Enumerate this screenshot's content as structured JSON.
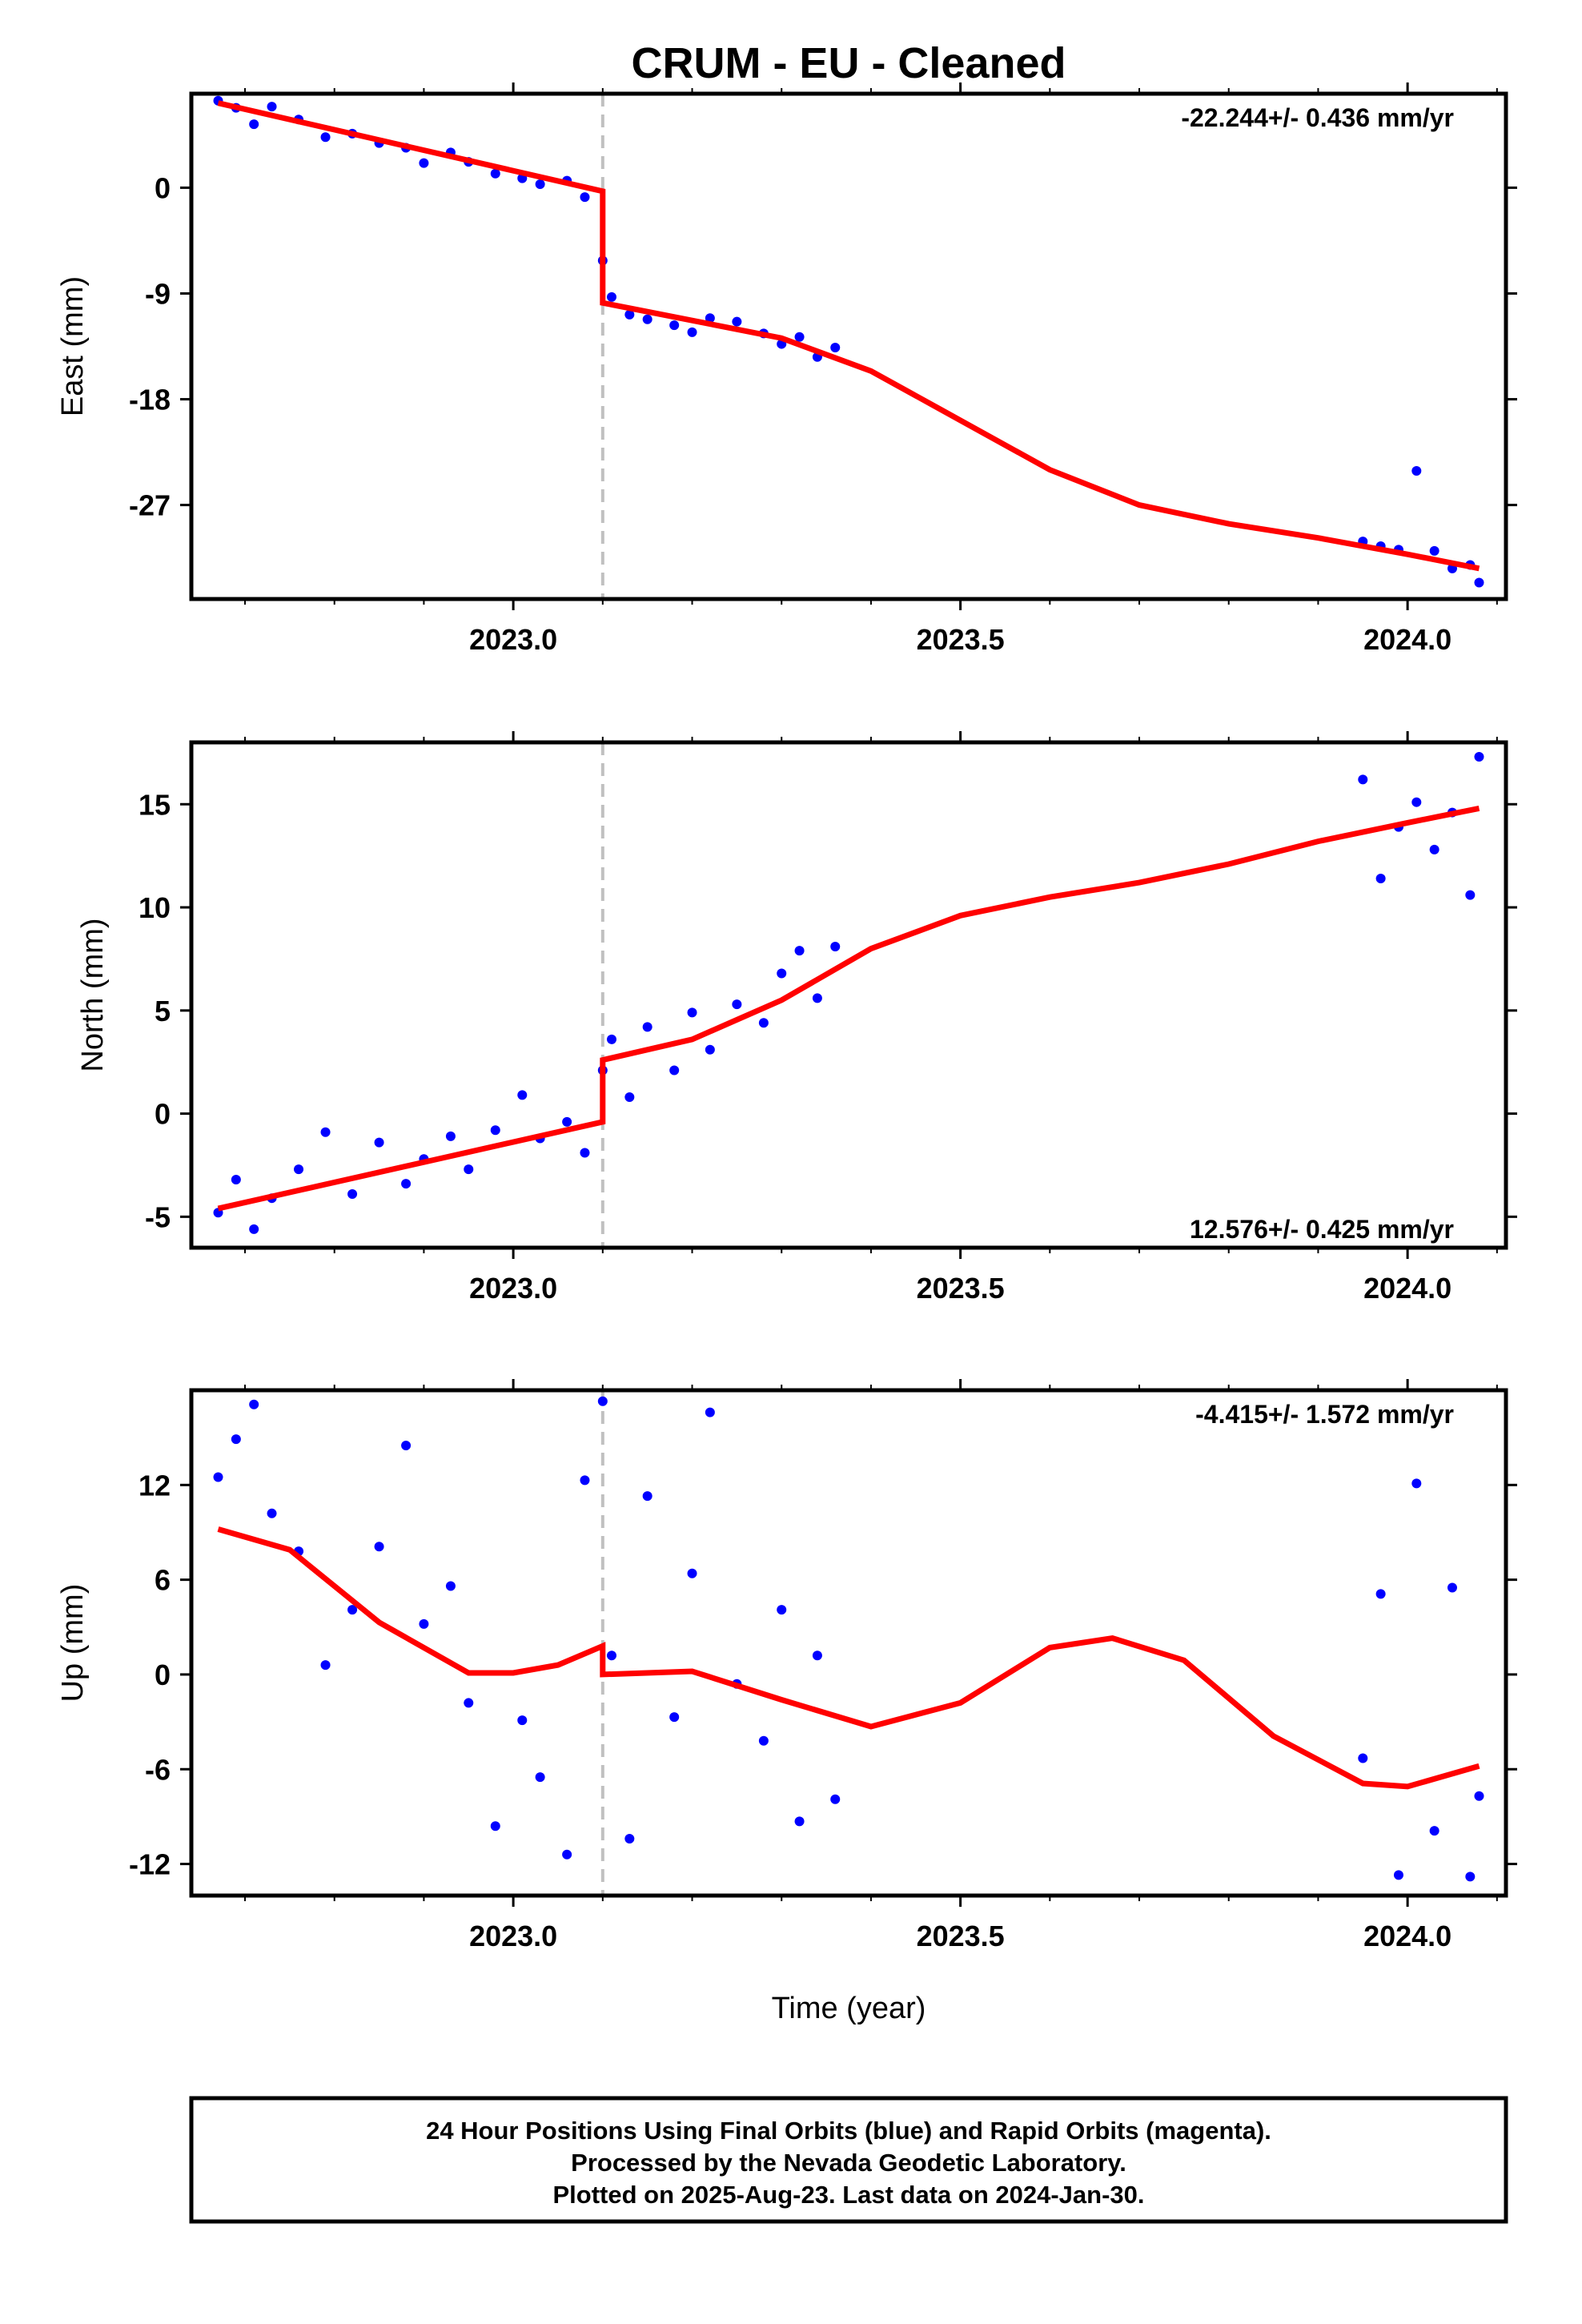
{
  "title": "CRUM  - EU - Cleaned",
  "footer": {
    "line1": "24 Hour Positions Using Final Orbits (blue) and Rapid Orbits (magenta).",
    "line2": "Processed by the Nevada Geodetic Laboratory.",
    "line3": "Plotted on 2025-Aug-23. Last data on 2024-Jan-30."
  },
  "colors": {
    "data_points": "#0000ff",
    "model_fit": "#ff0000",
    "offset_line": "#c0c0c0",
    "frame": "#000000"
  },
  "chart_data": [
    {
      "type": "scatter",
      "panel": "east",
      "ylabel": "East (mm)",
      "xlabel": "",
      "xlim": [
        2022.64,
        2024.11
      ],
      "ylim": [
        -35,
        8
      ],
      "xticks": [
        2023.0,
        2023.5,
        2024.0
      ],
      "xtick_labels": [
        "2023.0",
        "2023.5",
        "2024.0"
      ],
      "yticks": [
        0,
        -9,
        -18,
        -27
      ],
      "ytick_labels": [
        "0",
        "-9",
        "-18",
        "-27"
      ],
      "rate_annotation": "-22.244+/- 0.436 mm/yr",
      "rate_position": "top-right",
      "offset_epoch": 2023.1,
      "series": [
        {
          "role": "points",
          "color": "#0000ff",
          "x": [
            2022.67,
            2022.69,
            2022.71,
            2022.73,
            2022.76,
            2022.79,
            2022.82,
            2022.85,
            2022.88,
            2022.9,
            2022.93,
            2022.95,
            2022.98,
            2023.01,
            2023.03,
            2023.06,
            2023.08,
            2023.1,
            2023.11,
            2023.13,
            2023.15,
            2023.18,
            2023.2,
            2023.22,
            2023.25,
            2023.28,
            2023.3,
            2023.32,
            2023.34,
            2023.36,
            2023.95,
            2023.97,
            2023.99,
            2024.01,
            2024.03,
            2024.05,
            2024.07,
            2024.08
          ],
          "y": [
            7.4,
            6.8,
            5.4,
            6.9,
            5.8,
            4.3,
            4.6,
            3.8,
            3.4,
            2.1,
            3,
            2.2,
            1.2,
            0.8,
            0.3,
            0.6,
            -0.8,
            -6.2,
            -9.3,
            -10.8,
            -11.2,
            -11.7,
            -12.3,
            -11.1,
            -11.4,
            -12.4,
            -13.3,
            -12.7,
            -14.4,
            -13.6,
            -30.1,
            -30.5,
            -30.8,
            -24.1,
            -30.9,
            -32.4,
            -32.1,
            -33.6
          ]
        },
        {
          "role": "model",
          "color": "#ff0000",
          "x": [
            2022.67,
            2023.1,
            2023.1,
            2023.2,
            2023.3,
            2023.4,
            2023.5,
            2023.6,
            2023.7,
            2023.8,
            2023.9,
            2024.0,
            2024.08
          ],
          "y": [
            7.2,
            -0.3,
            -9.8,
            -11.3,
            -12.8,
            -15.6,
            -19.8,
            -24,
            -27,
            -28.6,
            -29.8,
            -31.2,
            -32.4
          ]
        }
      ]
    },
    {
      "type": "scatter",
      "panel": "north",
      "ylabel": "North (mm)",
      "xlabel": "",
      "xlim": [
        2022.64,
        2024.11
      ],
      "ylim": [
        -6.5,
        18
      ],
      "xticks": [
        2023.0,
        2023.5,
        2024.0
      ],
      "xtick_labels": [
        "2023.0",
        "2023.5",
        "2024.0"
      ],
      "yticks": [
        15,
        10,
        5,
        0,
        -5
      ],
      "ytick_labels": [
        "15",
        "10",
        "5",
        "0",
        "-5"
      ],
      "rate_annotation": "12.576+/- 0.425 mm/yr",
      "rate_position": "bottom-right",
      "offset_epoch": 2023.1,
      "series": [
        {
          "role": "points",
          "color": "#0000ff",
          "x": [
            2022.67,
            2022.69,
            2022.71,
            2022.73,
            2022.76,
            2022.79,
            2022.82,
            2022.85,
            2022.88,
            2022.9,
            2022.93,
            2022.95,
            2022.98,
            2023.01,
            2023.03,
            2023.06,
            2023.08,
            2023.1,
            2023.11,
            2023.13,
            2023.15,
            2023.18,
            2023.2,
            2023.22,
            2023.25,
            2023.28,
            2023.3,
            2023.32,
            2023.34,
            2023.36,
            2023.95,
            2023.97,
            2023.99,
            2024.01,
            2024.03,
            2024.05,
            2024.07,
            2024.08
          ],
          "y": [
            -4.8,
            -3.2,
            -5.6,
            -4.1,
            -2.7,
            -0.9,
            -3.9,
            -1.4,
            -3.4,
            -2.2,
            -1.1,
            -2.7,
            -0.8,
            0.9,
            -1.2,
            -0.4,
            -1.9,
            2.1,
            3.6,
            0.8,
            4.2,
            2.1,
            4.9,
            3.1,
            5.3,
            4.4,
            6.8,
            7.9,
            5.6,
            8.1,
            16.2,
            11.4,
            13.9,
            15.1,
            12.8,
            14.6,
            10.6,
            17.3
          ]
        },
        {
          "role": "model",
          "color": "#ff0000",
          "x": [
            2022.67,
            2023.1,
            2023.1,
            2023.2,
            2023.3,
            2023.4,
            2023.5,
            2023.6,
            2023.7,
            2023.8,
            2023.9,
            2024.0,
            2024.08
          ],
          "y": [
            -4.6,
            -0.4,
            2.6,
            3.6,
            5.5,
            8.0,
            9.6,
            10.5,
            11.2,
            12.1,
            13.2,
            14.1,
            14.8
          ]
        }
      ]
    },
    {
      "type": "scatter",
      "panel": "up",
      "ylabel": "Up (mm)",
      "xlabel": "Time (year)",
      "xlim": [
        2022.64,
        2024.11
      ],
      "ylim": [
        -14,
        18
      ],
      "xticks": [
        2023.0,
        2023.5,
        2024.0
      ],
      "xtick_labels": [
        "2023.0",
        "2023.5",
        "2024.0"
      ],
      "yticks": [
        12,
        6,
        0,
        -6,
        -12
      ],
      "ytick_labels": [
        "12",
        "6",
        "0",
        "-6",
        "-12"
      ],
      "rate_annotation": "-4.415+/- 1.572 mm/yr",
      "rate_position": "top-right",
      "offset_epoch": 2023.1,
      "series": [
        {
          "role": "points",
          "color": "#0000ff",
          "x": [
            2022.67,
            2022.69,
            2022.71,
            2022.73,
            2022.76,
            2022.79,
            2022.82,
            2022.85,
            2022.88,
            2022.9,
            2022.93,
            2022.95,
            2022.98,
            2023.01,
            2023.03,
            2023.06,
            2023.08,
            2023.1,
            2023.11,
            2023.13,
            2023.15,
            2023.18,
            2023.2,
            2023.22,
            2023.25,
            2023.28,
            2023.3,
            2023.32,
            2023.34,
            2023.36,
            2023.95,
            2023.97,
            2023.99,
            2024.01,
            2024.03,
            2024.05,
            2024.07,
            2024.08
          ],
          "y": [
            12.5,
            14.9,
            17.1,
            10.2,
            7.8,
            0.6,
            4.1,
            8.1,
            14.5,
            3.2,
            5.6,
            -1.8,
            -9.6,
            -2.9,
            -6.5,
            -11.4,
            12.3,
            17.3,
            1.2,
            -10.4,
            11.3,
            -2.7,
            6.4,
            16.6,
            -0.6,
            -4.2,
            4.1,
            -9.3,
            1.2,
            -7.9,
            -5.3,
            5.1,
            -12.7,
            12.1,
            -9.9,
            5.5,
            -12.8,
            -7.7
          ]
        },
        {
          "role": "model",
          "color": "#ff0000",
          "x": [
            2022.67,
            2022.75,
            2022.85,
            2022.95,
            2023.0,
            2023.05,
            2023.1,
            2023.1,
            2023.2,
            2023.3,
            2023.4,
            2023.5,
            2023.6,
            2023.67,
            2023.75,
            2023.85,
            2023.95,
            2024.0,
            2024.08
          ],
          "y": [
            9.2,
            7.9,
            3.3,
            0.1,
            0.1,
            0.6,
            1.8,
            0,
            0.2,
            -1.6,
            -3.3,
            -1.8,
            1.7,
            2.3,
            0.9,
            -3.9,
            -6.9,
            -7.1,
            -5.8
          ]
        }
      ]
    }
  ]
}
